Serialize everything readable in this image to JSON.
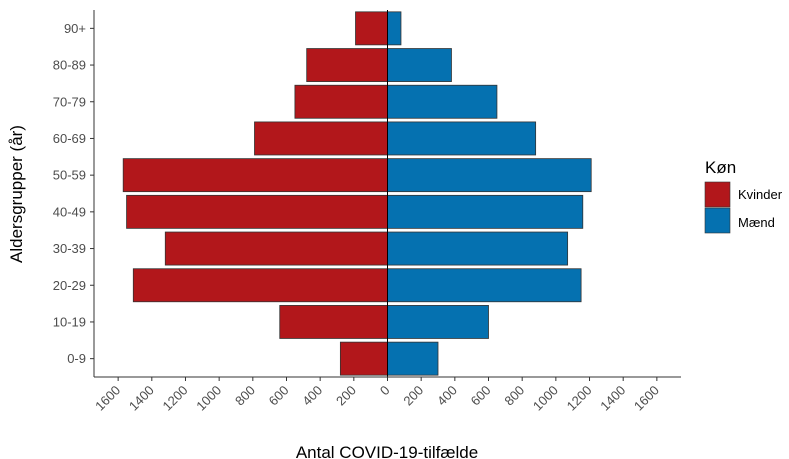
{
  "chart_data": {
    "type": "bar",
    "orientation": "horizontal-pyramid",
    "categories": [
      "0-9",
      "10-19",
      "20-29",
      "30-39",
      "40-49",
      "50-59",
      "60-69",
      "70-79",
      "80-89",
      "90+"
    ],
    "series": [
      {
        "name": "Kvinder",
        "side": "left",
        "color": "#b2171b",
        "values": [
          280,
          640,
          1510,
          1320,
          1550,
          1570,
          790,
          550,
          480,
          190
        ]
      },
      {
        "name": "Mænd",
        "side": "right",
        "color": "#0571b0",
        "values": [
          300,
          600,
          1150,
          1070,
          1160,
          1210,
          880,
          650,
          380,
          80
        ]
      }
    ],
    "xlabel": "Antal COVID-19-tilfælde",
    "ylabel": "Aldersgrupper (år)",
    "xlim": [
      -1750,
      1750
    ],
    "xticks": [
      -1600,
      -1400,
      -1200,
      -1000,
      -800,
      -600,
      -400,
      -200,
      0,
      200,
      400,
      600,
      800,
      1000,
      1200,
      1400,
      1600
    ],
    "xtick_labels": [
      "1600",
      "1400",
      "1200",
      "1000",
      "800",
      "600",
      "400",
      "200",
      "0",
      "200",
      "400",
      "600",
      "800",
      "1000",
      "1200",
      "1400",
      "1600"
    ],
    "grid": false,
    "legend": {
      "title": "Køn",
      "position": "right",
      "entries": [
        "Kvinder",
        "Mænd"
      ]
    }
  }
}
